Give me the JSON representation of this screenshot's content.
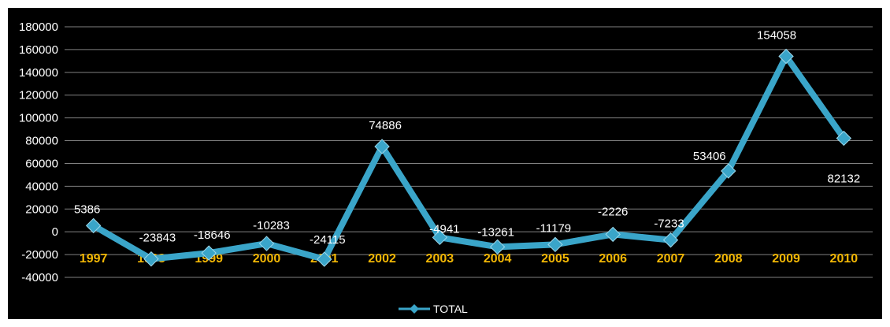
{
  "chart_data": {
    "type": "line",
    "title": "",
    "xlabel": "",
    "ylabel": "",
    "categories": [
      "1997",
      "1998",
      "1999",
      "2000",
      "2001",
      "2002",
      "2003",
      "2004",
      "2005",
      "2006",
      "2007",
      "2008",
      "2009",
      "2010"
    ],
    "series": [
      {
        "name": "TOTAL",
        "values": [
          5386,
          -23843,
          -18646,
          -10283,
          -24115,
          74886,
          -4941,
          -13261,
          -11179,
          -2226,
          -7233,
          53406,
          154058,
          82132
        ]
      }
    ],
    "data_labels": [
      "5386",
      "-23843",
      "-18646",
      "-10283",
      "-24115",
      "74886",
      "-4941",
      "-13261",
      "-11179",
      "-2226",
      "-7233",
      "53406",
      "154058",
      "82132"
    ],
    "ylim": [
      -40000,
      180000
    ],
    "yticks": [
      "180000",
      "160000",
      "140000",
      "120000",
      "100000",
      "80000",
      "60000",
      "40000",
      "20000",
      "0",
      "-20000",
      "-40000"
    ],
    "grid": true,
    "legend_position": "bottom",
    "colors": {
      "background": "#000000",
      "gridline": "#808080",
      "line": "#3aa5c9",
      "marker": "#3aa5c9",
      "x_tick_labels": "#f2b705",
      "text": "#ffffff"
    }
  }
}
